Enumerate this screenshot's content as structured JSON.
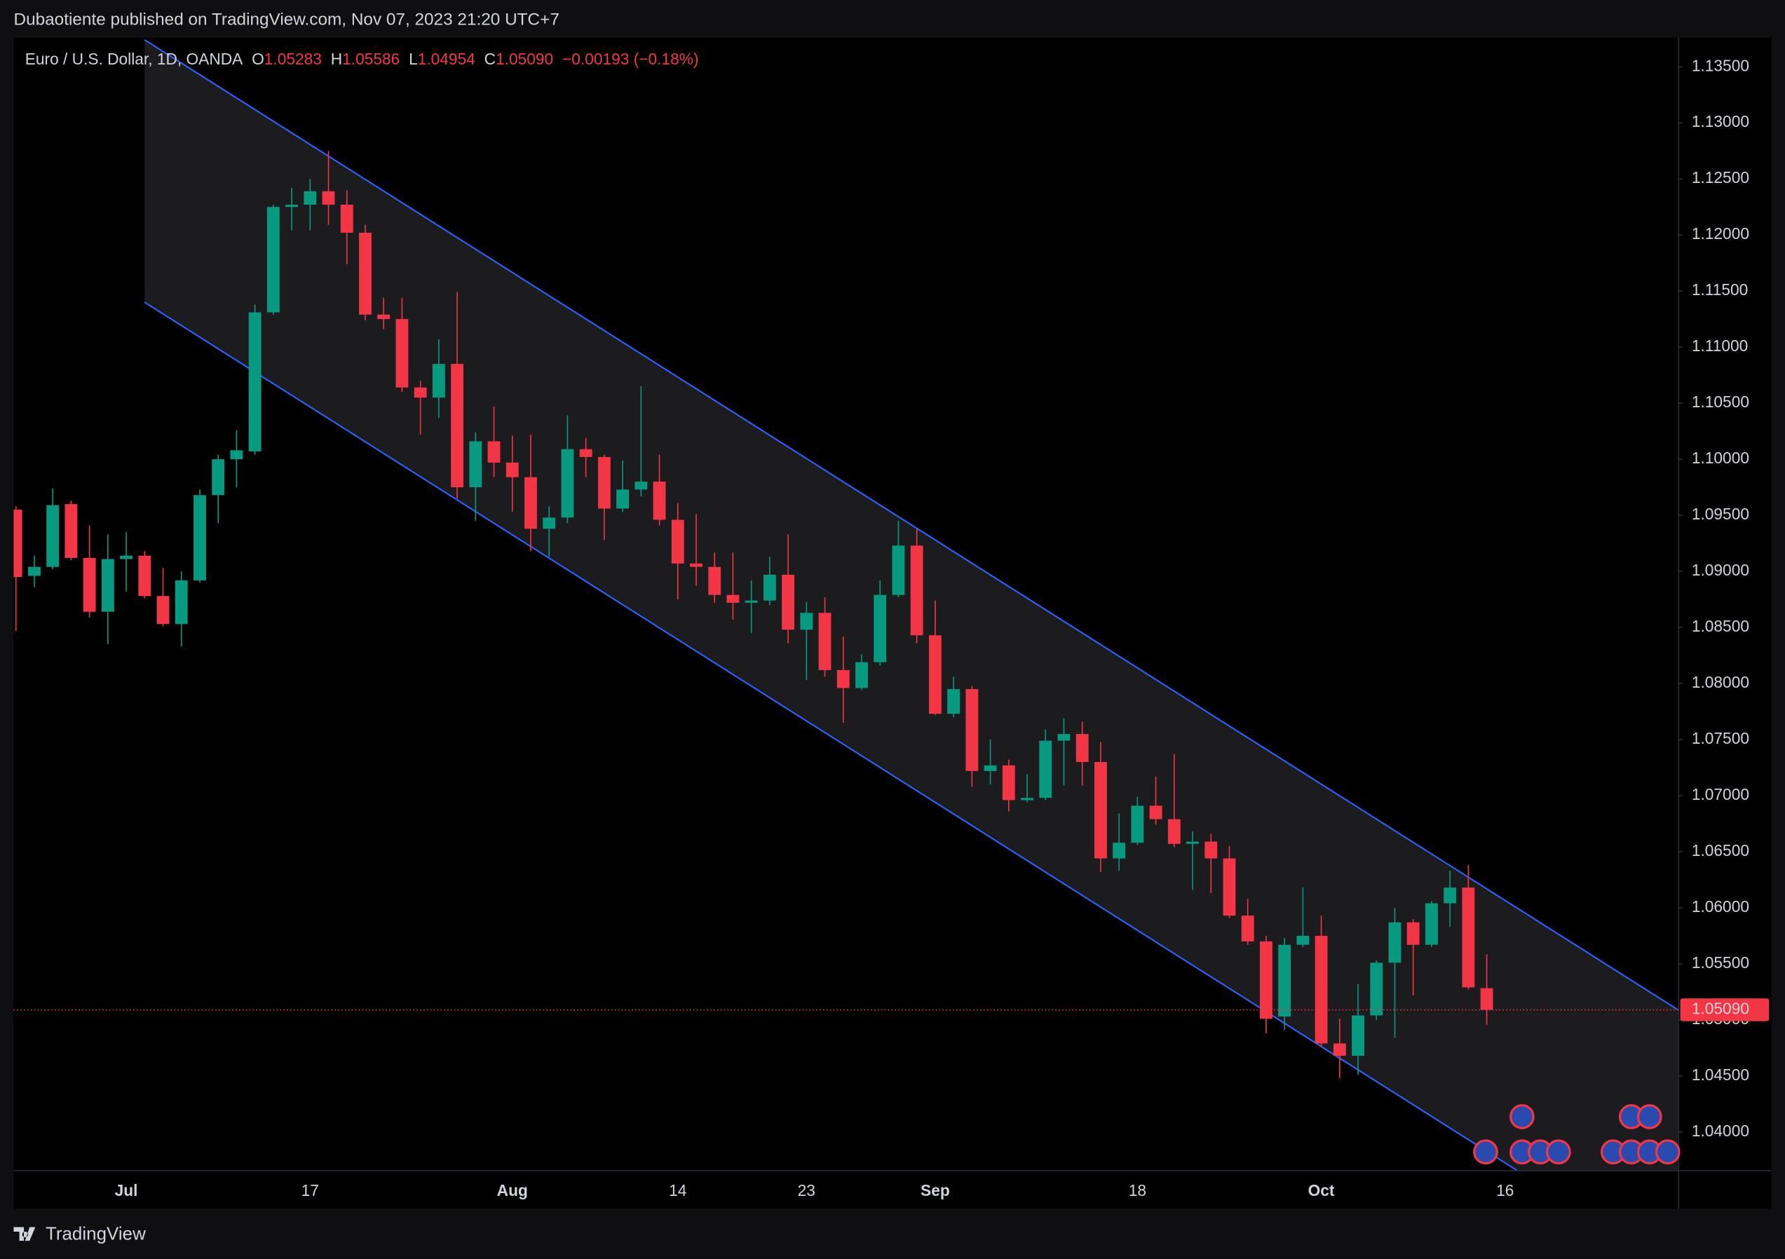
{
  "header": {
    "title": "Dubaotiente published on TradingView.com, Nov 07, 2023 21:20 UTC+7"
  },
  "footer": {
    "brand": "TradingView"
  },
  "chart_data": {
    "type": "candlestick",
    "title": "Euro / U.S. Dollar, 1D, OANDA",
    "legend": [
      {
        "label": "O",
        "value": "1.05283"
      },
      {
        "label": "H",
        "value": "1.05586"
      },
      {
        "label": "L",
        "value": "1.04954"
      },
      {
        "label": "C",
        "value": "1.05090"
      }
    ],
    "change": "−0.00193 (−0.18%)",
    "categories": [
      null,
      null,
      null,
      null,
      null,
      null,
      "Jul",
      null,
      null,
      null,
      null,
      null,
      null,
      null,
      null,
      null,
      "17",
      null,
      null,
      null,
      null,
      null,
      null,
      null,
      null,
      null,
      null,
      "Aug",
      null,
      null,
      null,
      null,
      null,
      null,
      null,
      null,
      "14",
      null,
      null,
      null,
      null,
      null,
      null,
      "23",
      null,
      null,
      null,
      null,
      null,
      null,
      "Sep",
      null,
      null,
      null,
      null,
      null,
      null,
      null,
      null,
      null,
      null,
      "18",
      null,
      null,
      null,
      null,
      null,
      null,
      null,
      null,
      null,
      "Oct",
      null,
      null,
      null,
      null,
      null,
      null,
      null,
      null,
      null,
      "16",
      null,
      null,
      null
    ],
    "open": [
      1.0955,
      1.0896,
      1.0904,
      1.096,
      1.0912,
      1.0864,
      1.0911,
      1.0914,
      1.0878,
      1.0853,
      1.0892,
      1.0968,
      1.1,
      1.1007,
      1.1131,
      1.1225,
      1.1227,
      1.1239,
      1.1227,
      1.1202,
      1.1129,
      1.1125,
      1.1064,
      1.1055,
      1.1085,
      1.0975,
      1.1016,
      1.0997,
      1.0984,
      1.0938,
      1.0948,
      1.1009,
      1.1002,
      1.0956,
      1.0973,
      1.098,
      1.0946,
      1.0907,
      1.0904,
      1.0879,
      1.0872,
      1.0874,
      1.0897,
      1.0848,
      1.0863,
      1.0812,
      1.0796,
      1.0819,
      1.0879,
      1.0923,
      1.0843,
      1.0773,
      1.0795,
      1.0722,
      1.0727,
      1.0696,
      1.0698,
      1.0749,
      1.0755,
      1.073,
      1.0644,
      1.0658,
      1.0691,
      1.0679,
      1.0657,
      1.0659,
      1.0644,
      1.0593,
      1.057,
      1.0503,
      1.0567,
      1.0575,
      1.0479,
      1.0468,
      1.0504,
      1.0551,
      1.0587,
      1.0567,
      1.0604,
      1.0618,
      1.05283,
      null,
      null,
      null,
      null
    ],
    "high": [
      1.0958,
      1.0914,
      1.0974,
      1.0963,
      1.0941,
      1.0933,
      1.0935,
      1.0918,
      1.0903,
      1.09,
      1.0973,
      1.1004,
      1.1026,
      1.1138,
      1.1227,
      1.1242,
      1.125,
      1.1275,
      1.124,
      1.1209,
      1.1144,
      1.1144,
      1.107,
      1.1107,
      1.1149,
      1.1024,
      1.1047,
      1.1021,
      1.1022,
      1.0958,
      1.1039,
      1.1019,
      1.1004,
      1.0999,
      1.1065,
      1.1004,
      1.0961,
      1.0951,
      1.0917,
      1.0917,
      1.0892,
      1.0913,
      1.0933,
      1.0873,
      1.0877,
      1.0842,
      1.0826,
      1.0892,
      1.0945,
      1.0938,
      1.0874,
      1.0806,
      1.0798,
      1.075,
      1.0732,
      1.0719,
      1.0759,
      1.0769,
      1.0766,
      1.0748,
      1.0684,
      1.0699,
      1.0717,
      1.0737,
      1.0668,
      1.0666,
      1.0655,
      1.0608,
      1.0575,
      1.0573,
      1.0618,
      1.0593,
      1.0501,
      1.0532,
      1.0553,
      1.06,
      1.059,
      1.0606,
      1.0633,
      1.0638,
      1.05586,
      null,
      null,
      null,
      null
    ],
    "low": [
      1.0847,
      1.0886,
      1.0902,
      1.091,
      1.0859,
      1.0835,
      1.0882,
      1.0876,
      1.0851,
      1.0833,
      1.089,
      1.0943,
      1.0975,
      1.1004,
      1.1129,
      1.1204,
      1.1204,
      1.1209,
      1.1174,
      1.1124,
      1.1116,
      1.106,
      1.1022,
      1.1037,
      1.0965,
      1.0945,
      1.0984,
      1.0953,
      1.0918,
      1.0913,
      1.0943,
      1.0984,
      1.0928,
      1.0953,
      1.0967,
      1.0941,
      1.0875,
      1.0887,
      1.0872,
      1.0857,
      1.0845,
      1.087,
      1.0836,
      1.0803,
      1.0806,
      1.0765,
      1.0794,
      1.0816,
      1.0877,
      1.0836,
      1.0772,
      1.077,
      1.0708,
      1.071,
      1.0686,
      1.0694,
      1.0696,
      1.0709,
      1.0709,
      1.0632,
      1.0633,
      1.0656,
      1.0674,
      1.0654,
      1.0616,
      1.0613,
      1.0591,
      1.0567,
      1.0488,
      1.0491,
      1.0565,
      1.0476,
      1.0448,
      1.0451,
      1.05,
      1.0484,
      1.0522,
      1.0565,
      1.0583,
      1.0527,
      1.04954,
      null,
      null,
      null,
      null
    ],
    "close": [
      1.0895,
      1.0904,
      1.0959,
      1.0912,
      1.0864,
      1.0911,
      1.0914,
      1.0878,
      1.0853,
      1.0892,
      1.0968,
      1.1,
      1.1008,
      1.1131,
      1.1225,
      1.1227,
      1.1239,
      1.1227,
      1.1202,
      1.1129,
      1.1125,
      1.1064,
      1.1055,
      1.1085,
      1.0975,
      1.1016,
      1.0997,
      1.0984,
      1.0938,
      1.0948,
      1.1009,
      1.1002,
      1.0956,
      1.0973,
      1.098,
      1.0946,
      1.0907,
      1.0904,
      1.0879,
      1.0872,
      1.0874,
      1.0897,
      1.0848,
      1.0863,
      1.0812,
      1.0796,
      1.0819,
      1.0879,
      1.0923,
      1.0843,
      1.0773,
      1.0795,
      1.0722,
      1.0727,
      1.0696,
      1.0698,
      1.0749,
      1.0755,
      1.073,
      1.0644,
      1.0658,
      1.0691,
      1.0679,
      1.0657,
      1.0659,
      1.0644,
      1.0593,
      1.057,
      1.0501,
      1.0567,
      1.0575,
      1.0479,
      1.0468,
      1.0504,
      1.0551,
      1.0587,
      1.0567,
      1.0604,
      1.0618,
      1.0529,
      1.0509,
      null,
      null,
      null,
      null
    ],
    "up_color": "#089981",
    "down_color": "#f23645",
    "ylim": [
      1.0366,
      1.1376
    ],
    "yticks": [
      {
        "value": 1.135,
        "label": "1.13500"
      },
      {
        "value": 1.13,
        "label": "1.13000"
      },
      {
        "value": 1.125,
        "label": "1.12500"
      },
      {
        "value": 1.12,
        "label": "1.12000"
      },
      {
        "value": 1.115,
        "label": "1.11500"
      },
      {
        "value": 1.11,
        "label": "1.11000"
      },
      {
        "value": 1.105,
        "label": "1.10500"
      },
      {
        "value": 1.1,
        "label": "1.10000"
      },
      {
        "value": 1.095,
        "label": "1.09500"
      },
      {
        "value": 1.09,
        "label": "1.09000"
      },
      {
        "value": 1.085,
        "label": "1.08500"
      },
      {
        "value": 1.08,
        "label": "1.08000"
      },
      {
        "value": 1.075,
        "label": "1.07500"
      },
      {
        "value": 1.07,
        "label": "1.07000"
      },
      {
        "value": 1.065,
        "label": "1.06500"
      },
      {
        "value": 1.06,
        "label": "1.06000"
      },
      {
        "value": 1.055,
        "label": "1.05500"
      },
      {
        "value": 1.05,
        "label": "1.05000"
      },
      {
        "value": 1.045,
        "label": "1.04500"
      },
      {
        "value": 1.04,
        "label": "1.04000"
      }
    ],
    "last_price": {
      "value": 1.0509,
      "label": "1.05090"
    },
    "channel": {
      "x": [
        7,
        90.4
      ],
      "upper": [
        1.1374,
        1.0509
      ],
      "lower": [
        1.114,
        1.0275
      ],
      "color": "#2962ff"
    }
  }
}
